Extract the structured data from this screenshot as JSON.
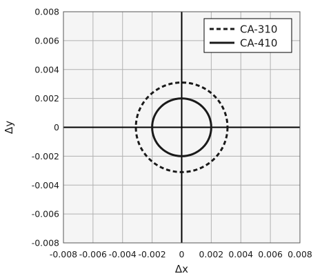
{
  "chart_data": {
    "type": "line",
    "title": "",
    "xlabel": "Δx",
    "ylabel": "Δy",
    "xlim": [
      -0.008,
      0.008
    ],
    "ylim": [
      -0.008,
      0.008
    ],
    "grid": true,
    "legend_position": "top-right",
    "x_ticks": [
      "-0.008",
      "-0.006",
      "-0.004",
      "-0.002",
      "0",
      "0.002",
      "0.004",
      "0.006",
      "0.008"
    ],
    "y_ticks": [
      "0.008",
      "0.006",
      "0.004",
      "0.002",
      "0",
      "-0.002",
      "-0.004",
      "-0.006",
      "-0.008"
    ],
    "series": [
      {
        "name": "CA-310",
        "shape": "circle",
        "center": [
          0,
          0
        ],
        "radius": 0.0031,
        "line_style": "dashed",
        "color": "#1a1a1a"
      },
      {
        "name": "CA-410",
        "shape": "circle",
        "center": [
          0,
          0
        ],
        "radius": 0.002,
        "line_style": "solid",
        "color": "#1a1a1a"
      }
    ],
    "colors": {
      "grid": "#b0b0b0",
      "plot_background": "#f5f5f5",
      "axis": "#000000"
    }
  }
}
